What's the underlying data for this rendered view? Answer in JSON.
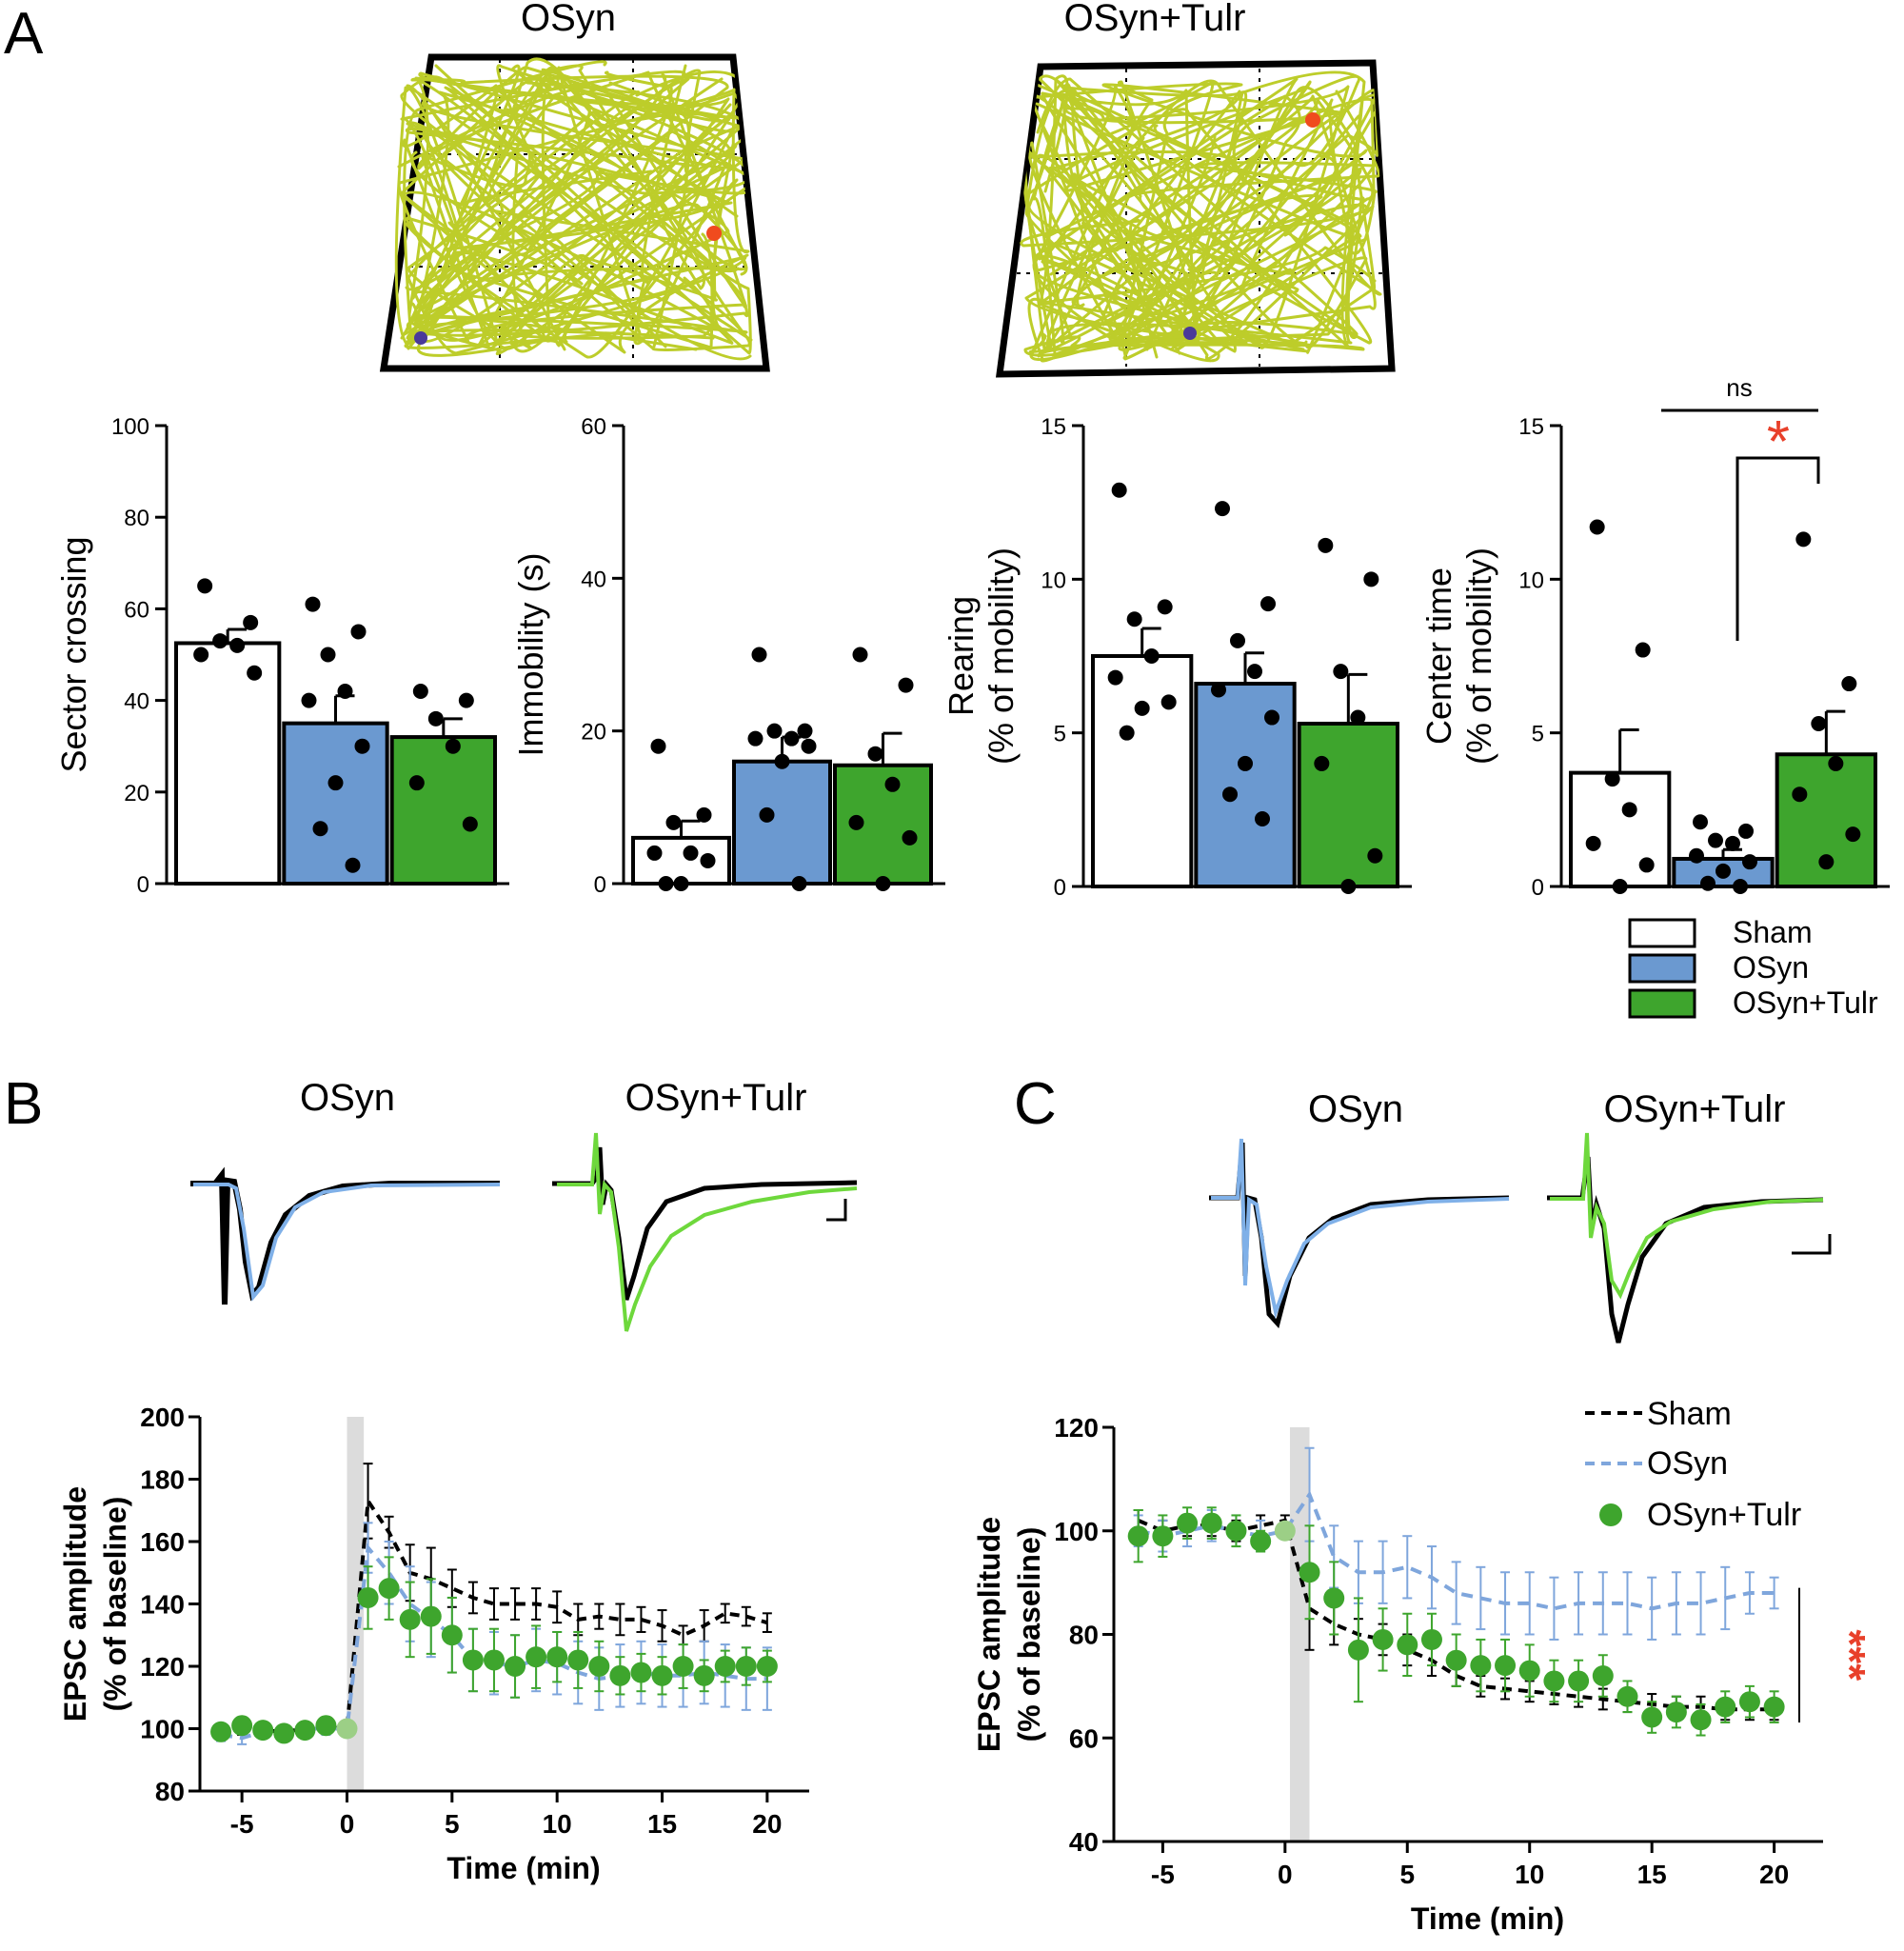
{
  "panels": {
    "a": "A",
    "b": "B",
    "c": "C"
  },
  "colors": {
    "sham": "#ffffff",
    "osyn": "#6b99d0",
    "tulr": "#3ea52d",
    "osyn_trace": "#7fb0e8",
    "tulr_trace": "#6ed83c",
    "track": "#bdcd2a",
    "sig": "#e8402a",
    "shade": "#dcdcdc"
  },
  "arenas": {
    "left_title": "OSyn",
    "right_title": "OSyn+Tulr"
  },
  "traces": {
    "b_left": "OSyn",
    "b_right": "OSyn+Tulr",
    "c_left": "OSyn",
    "c_right": "OSyn+Tulr"
  },
  "legend_a": [
    "Sham",
    "OSyn",
    "OSyn+Tulr"
  ],
  "legend_c": [
    "Sham",
    "OSyn",
    "OSyn+Tulr"
  ],
  "chart_data": [
    {
      "id": "sector",
      "type": "bar",
      "categories": [
        "Sham",
        "OSyn",
        "OSyn+Tulr"
      ],
      "ylabel": [
        "Sector crossing"
      ],
      "ylim": [
        0,
        100
      ],
      "yticks": [
        0,
        20,
        40,
        60,
        80,
        100
      ],
      "values": [
        52.5,
        35,
        32
      ],
      "sem": [
        3,
        6,
        4
      ],
      "points": [
        [
          65,
          57,
          53,
          52,
          50,
          46
        ],
        [
          61,
          55,
          50,
          42,
          40,
          30,
          22,
          12,
          4
        ],
        [
          42,
          40,
          36,
          30,
          22,
          13
        ]
      ]
    },
    {
      "id": "immobility",
      "type": "bar",
      "categories": [
        "Sham",
        "OSyn",
        "OSyn+Tulr"
      ],
      "ylabel": [
        "Immobility (s)"
      ],
      "ylim": [
        0,
        60
      ],
      "yticks": [
        0,
        20,
        40,
        60
      ],
      "values": [
        6,
        16,
        15.5
      ],
      "sem": [
        2.2,
        3.2,
        4.2
      ],
      "points": [
        [
          18,
          9,
          8,
          4,
          4,
          3,
          0,
          0
        ],
        [
          30,
          20,
          20,
          19,
          19,
          18,
          16,
          9,
          0
        ],
        [
          30,
          26,
          17,
          13,
          8,
          6,
          0
        ]
      ]
    },
    {
      "id": "rearing",
      "type": "bar",
      "categories": [
        "Sham",
        "OSyn",
        "OSyn+Tulr"
      ],
      "ylabel": [
        "Rearing",
        "(% of mobility)"
      ],
      "ylim": [
        0,
        15
      ],
      "yticks": [
        0,
        5,
        10,
        15
      ],
      "values": [
        7.5,
        6.6,
        5.3
      ],
      "sem": [
        0.9,
        1.0,
        1.6
      ],
      "points": [
        [
          12.9,
          9.1,
          8.7,
          7.5,
          6.8,
          6.0,
          5.8,
          5.0
        ],
        [
          12.3,
          9.2,
          8.0,
          7.0,
          6.4,
          5.5,
          4.0,
          3.0,
          2.2
        ],
        [
          11.1,
          10.0,
          7.0,
          5.5,
          4.0,
          1.0,
          0
        ]
      ]
    },
    {
      "id": "center",
      "type": "bar",
      "categories": [
        "Sham",
        "OSyn",
        "OSyn+Tulr"
      ],
      "ylabel": [
        "Center time",
        "(% of mobility)"
      ],
      "ylim": [
        0,
        15
      ],
      "yticks": [
        0,
        5,
        10,
        15
      ],
      "values": [
        3.7,
        0.9,
        4.3
      ],
      "sem": [
        1.4,
        0.3,
        1.4
      ],
      "points": [
        [
          11.7,
          7.7,
          3.5,
          2.5,
          1.4,
          0.7,
          0
        ],
        [
          2.1,
          1.8,
          1.5,
          1.4,
          1.0,
          0.8,
          0.5,
          0.1,
          0
        ],
        [
          11.3,
          6.6,
          5.3,
          4.0,
          3.0,
          1.7,
          0.8
        ]
      ],
      "annotations": {
        "ns": "ns",
        "star": "*"
      }
    },
    {
      "id": "ltp",
      "type": "line",
      "xlabel": "Time (min)",
      "ylabel": [
        "EPSC amplitude",
        "(% of baseline)"
      ],
      "xlim": [
        -7,
        22
      ],
      "ylim": [
        80,
        200
      ],
      "xticks": [
        -5,
        0,
        5,
        10,
        15,
        20
      ],
      "yticks": [
        80,
        100,
        120,
        140,
        160,
        180,
        200
      ],
      "shade": [
        0,
        0.8
      ],
      "series": [
        {
          "name": "Sham",
          "style": "dash-black",
          "x": [
            -6,
            -5,
            -4,
            -3,
            -2,
            -1,
            0,
            1,
            2,
            3,
            4,
            5,
            6,
            7,
            8,
            9,
            10,
            11,
            12,
            13,
            14,
            15,
            16,
            17,
            18,
            19,
            20
          ],
          "y": [
            99,
            100,
            99.5,
            99,
            100,
            100.5,
            100,
            173,
            163,
            150,
            148,
            145,
            142,
            140,
            140,
            140,
            139,
            135,
            136,
            135,
            135,
            133,
            130,
            133,
            137,
            136,
            134
          ],
          "err": [
            2,
            2,
            2,
            2,
            2,
            2,
            0,
            12,
            5,
            9,
            10,
            6,
            5,
            5,
            5,
            5,
            5,
            5,
            4,
            5,
            4,
            5,
            3,
            5,
            3,
            3,
            3
          ]
        },
        {
          "name": "OSyn",
          "style": "dash-blue",
          "x": [
            -6,
            -5,
            -4,
            -3,
            -2,
            -1,
            0,
            1,
            2,
            3,
            4,
            5,
            6,
            7,
            8,
            9,
            10,
            11,
            12,
            13,
            14,
            15,
            16,
            17,
            18,
            19,
            20
          ],
          "y": [
            98,
            97,
            99,
            99,
            100,
            100,
            100,
            158,
            150,
            140,
            135,
            130,
            122,
            121,
            120,
            122,
            121,
            118,
            116,
            117,
            118,
            117,
            117,
            118,
            117,
            116,
            116
          ],
          "err": [
            2,
            2,
            2,
            2,
            2,
            2,
            0,
            8,
            10,
            12,
            12,
            12,
            10,
            10,
            10,
            10,
            10,
            10,
            10,
            10,
            10,
            10,
            10,
            10,
            10,
            10,
            10
          ]
        },
        {
          "name": "OSyn+Tulr",
          "style": "dot-green",
          "x": [
            -6,
            -5,
            -4,
            -3,
            -2,
            -1,
            0,
            1,
            2,
            3,
            4,
            5,
            6,
            7,
            8,
            9,
            10,
            11,
            12,
            13,
            14,
            15,
            16,
            17,
            18,
            19,
            20
          ],
          "y": [
            99,
            101,
            99.5,
            98.5,
            99.5,
            101,
            100,
            142,
            145,
            135,
            136,
            130,
            122,
            122,
            120,
            123,
            123,
            122,
            120,
            117,
            118,
            117,
            120,
            117,
            120,
            120,
            120
          ],
          "err": [
            2,
            2,
            2,
            2,
            2,
            2,
            0,
            10,
            10,
            12,
            12,
            12,
            10,
            10,
            10,
            10,
            8,
            9,
            8,
            6,
            6,
            6,
            7,
            5,
            5,
            6,
            5
          ]
        }
      ]
    },
    {
      "id": "ltd",
      "type": "line",
      "xlabel": "Time (min)",
      "ylabel": [
        "EPSC amplitude",
        "(% of baseline)"
      ],
      "xlim": [
        -7,
        22
      ],
      "ylim": [
        40,
        120
      ],
      "xticks": [
        -5,
        0,
        5,
        10,
        15,
        20
      ],
      "yticks": [
        40,
        60,
        80,
        100,
        120
      ],
      "shade": [
        0.2,
        1.0
      ],
      "significance": "***",
      "series": [
        {
          "name": "Sham",
          "style": "dash-black",
          "x": [
            -6,
            -5,
            -4,
            -3,
            -2,
            -1,
            0,
            1,
            2,
            3,
            4,
            5,
            6,
            7,
            8,
            9,
            10,
            11,
            12,
            13,
            14,
            15,
            16,
            17,
            18,
            19,
            20
          ],
          "y": [
            102,
            100,
            101,
            101,
            100,
            101,
            102,
            85,
            82,
            80,
            79,
            77,
            75,
            72,
            70,
            69.5,
            69,
            68.5,
            68,
            67.5,
            67,
            66.5,
            66,
            66,
            65.5,
            65.5,
            65.5
          ],
          "err": [
            2,
            2,
            2,
            2,
            2,
            2,
            1,
            8,
            4,
            3,
            3,
            3,
            3,
            2,
            2,
            2,
            2,
            2,
            2,
            2,
            2,
            2,
            2,
            2,
            2,
            2,
            2
          ]
        },
        {
          "name": "OSyn",
          "style": "dash-blue",
          "x": [
            -6,
            -5,
            -4,
            -3,
            -2,
            -1,
            0,
            1,
            2,
            3,
            4,
            5,
            6,
            7,
            8,
            9,
            10,
            11,
            12,
            13,
            14,
            15,
            16,
            17,
            18,
            19,
            20
          ],
          "y": [
            100,
            99,
            100,
            101,
            100,
            99,
            100,
            107,
            95,
            92,
            92,
            93,
            91,
            88,
            87,
            86,
            86,
            85,
            86,
            86,
            86,
            85,
            86,
            86,
            87,
            88,
            88
          ],
          "err": [
            3,
            3,
            3,
            3,
            3,
            3,
            0,
            9,
            6,
            6,
            6,
            6,
            6,
            6,
            6,
            6,
            6,
            6,
            6,
            6,
            6,
            6,
            6,
            6,
            6,
            4,
            3
          ]
        },
        {
          "name": "OSyn+Tulr",
          "style": "dot-green",
          "x": [
            -6,
            -5,
            -4,
            -3,
            -2,
            -1,
            0,
            1,
            2,
            3,
            4,
            5,
            6,
            7,
            8,
            9,
            10,
            11,
            12,
            13,
            14,
            15,
            16,
            17,
            18,
            19,
            20
          ],
          "y": [
            99,
            99,
            101.5,
            101.5,
            100,
            98,
            100,
            92,
            87,
            77,
            79,
            78,
            79,
            75,
            74,
            74,
            73,
            71,
            71,
            72,
            68,
            64,
            65,
            63.5,
            66,
            67,
            66
          ],
          "err": [
            5,
            4,
            3,
            3,
            3,
            2,
            0,
            9,
            7,
            10,
            6,
            6,
            5,
            5,
            5,
            5,
            5,
            4,
            4,
            4,
            3,
            3,
            3,
            3,
            3,
            3,
            3
          ]
        }
      ]
    }
  ]
}
